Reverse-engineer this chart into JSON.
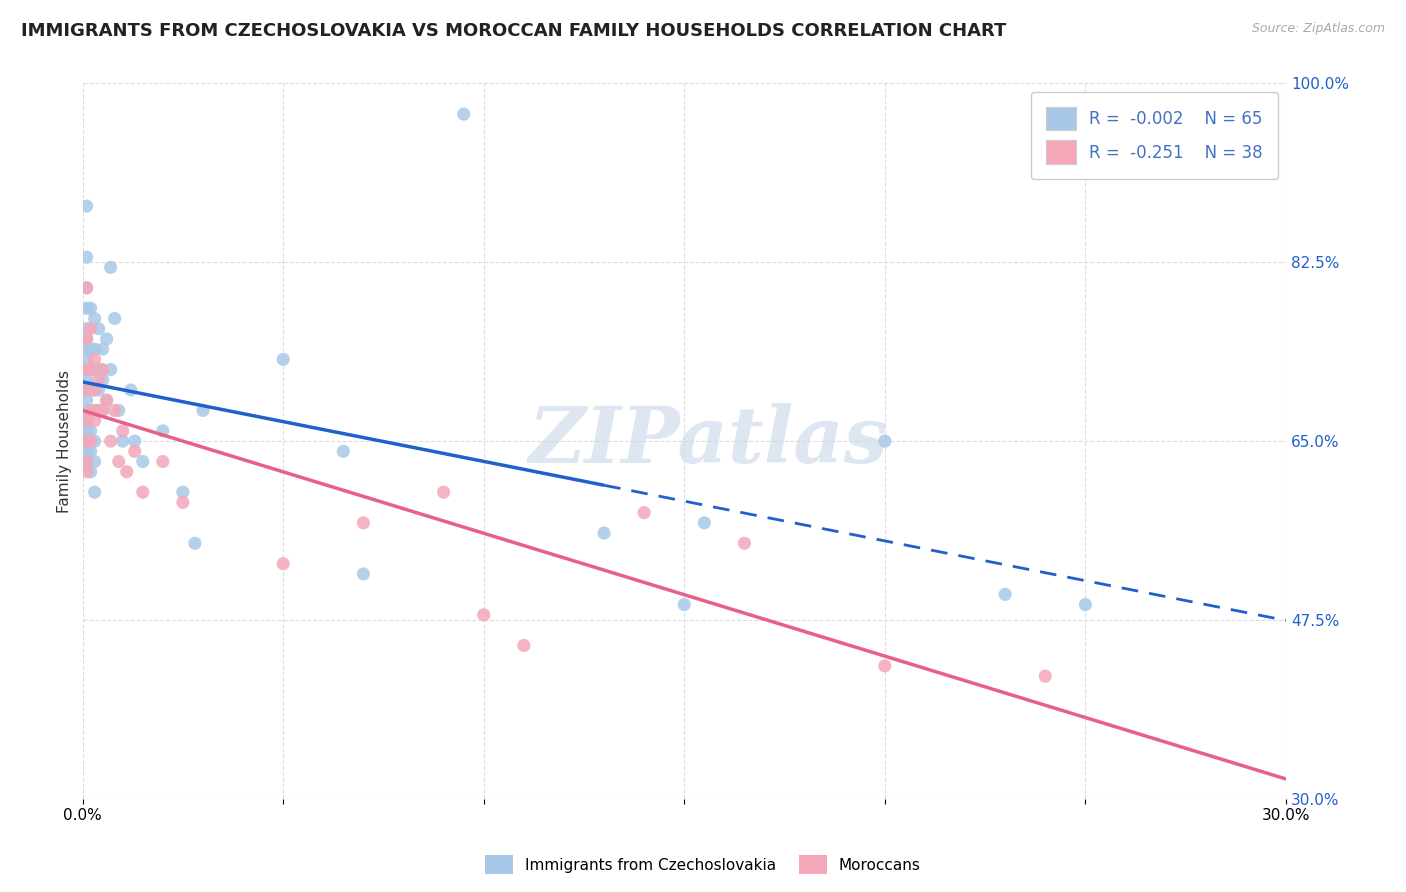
{
  "title": "IMMIGRANTS FROM CZECHOSLOVAKIA VS MOROCCAN FAMILY HOUSEHOLDS CORRELATION CHART",
  "source": "Source: ZipAtlas.com",
  "ylabel": "Family Households",
  "watermark": "ZIPatlas",
  "xmin": 0.0,
  "xmax": 0.3,
  "ymin": 0.3,
  "ymax": 1.0,
  "yticks": [
    0.3,
    0.475,
    0.65,
    0.825,
    1.0
  ],
  "ytick_labels": [
    "30.0%",
    "47.5%",
    "65.0%",
    "82.5%",
    "100.0%"
  ],
  "xticks": [
    0.0,
    0.05,
    0.1,
    0.15,
    0.2,
    0.25,
    0.3
  ],
  "legend_entries": [
    {
      "label": "Immigrants from Czechoslovakia",
      "color": "#a8c8e8",
      "R": "-0.002",
      "N": "65"
    },
    {
      "label": "Moroccans",
      "color": "#f4a7b9",
      "R": "-0.251",
      "N": "38"
    }
  ],
  "blue_color": "#a8c8e8",
  "pink_color": "#f4a7b9",
  "blue_line_color": "#2060cc",
  "pink_line_color": "#e8608a",
  "blue_line_solid_end": 0.13,
  "dot_size": 90,
  "blue_scatter": [
    [
      0.001,
      0.88
    ],
    [
      0.001,
      0.83
    ],
    [
      0.001,
      0.8
    ],
    [
      0.001,
      0.78
    ],
    [
      0.001,
      0.76
    ],
    [
      0.001,
      0.75
    ],
    [
      0.001,
      0.74
    ],
    [
      0.001,
      0.73
    ],
    [
      0.001,
      0.72
    ],
    [
      0.001,
      0.71
    ],
    [
      0.001,
      0.7
    ],
    [
      0.001,
      0.69
    ],
    [
      0.001,
      0.68
    ],
    [
      0.001,
      0.67
    ],
    [
      0.001,
      0.66
    ],
    [
      0.001,
      0.65
    ],
    [
      0.001,
      0.64
    ],
    [
      0.001,
      0.63
    ],
    [
      0.002,
      0.78
    ],
    [
      0.002,
      0.74
    ],
    [
      0.002,
      0.72
    ],
    [
      0.002,
      0.7
    ],
    [
      0.002,
      0.68
    ],
    [
      0.002,
      0.66
    ],
    [
      0.002,
      0.64
    ],
    [
      0.002,
      0.62
    ],
    [
      0.003,
      0.77
    ],
    [
      0.003,
      0.74
    ],
    [
      0.003,
      0.72
    ],
    [
      0.003,
      0.7
    ],
    [
      0.003,
      0.68
    ],
    [
      0.003,
      0.65
    ],
    [
      0.003,
      0.63
    ],
    [
      0.003,
      0.6
    ],
    [
      0.004,
      0.76
    ],
    [
      0.004,
      0.72
    ],
    [
      0.004,
      0.7
    ],
    [
      0.004,
      0.68
    ],
    [
      0.005,
      0.74
    ],
    [
      0.005,
      0.71
    ],
    [
      0.005,
      0.68
    ],
    [
      0.006,
      0.75
    ],
    [
      0.006,
      0.69
    ],
    [
      0.007,
      0.82
    ],
    [
      0.007,
      0.72
    ],
    [
      0.008,
      0.77
    ],
    [
      0.009,
      0.68
    ],
    [
      0.01,
      0.65
    ],
    [
      0.012,
      0.7
    ],
    [
      0.013,
      0.65
    ],
    [
      0.015,
      0.63
    ],
    [
      0.02,
      0.66
    ],
    [
      0.025,
      0.6
    ],
    [
      0.028,
      0.55
    ],
    [
      0.03,
      0.68
    ],
    [
      0.05,
      0.73
    ],
    [
      0.065,
      0.64
    ],
    [
      0.07,
      0.52
    ],
    [
      0.095,
      0.97
    ],
    [
      0.13,
      0.56
    ],
    [
      0.15,
      0.49
    ],
    [
      0.155,
      0.57
    ],
    [
      0.2,
      0.65
    ],
    [
      0.23,
      0.5
    ],
    [
      0.25,
      0.49
    ]
  ],
  "pink_scatter": [
    [
      0.001,
      0.8
    ],
    [
      0.001,
      0.75
    ],
    [
      0.001,
      0.72
    ],
    [
      0.001,
      0.7
    ],
    [
      0.001,
      0.67
    ],
    [
      0.001,
      0.65
    ],
    [
      0.001,
      0.63
    ],
    [
      0.001,
      0.62
    ],
    [
      0.002,
      0.76
    ],
    [
      0.002,
      0.72
    ],
    [
      0.002,
      0.68
    ],
    [
      0.002,
      0.65
    ],
    [
      0.003,
      0.73
    ],
    [
      0.003,
      0.7
    ],
    [
      0.003,
      0.67
    ],
    [
      0.004,
      0.71
    ],
    [
      0.004,
      0.68
    ],
    [
      0.005,
      0.72
    ],
    [
      0.005,
      0.68
    ],
    [
      0.006,
      0.69
    ],
    [
      0.007,
      0.65
    ],
    [
      0.008,
      0.68
    ],
    [
      0.009,
      0.63
    ],
    [
      0.01,
      0.66
    ],
    [
      0.011,
      0.62
    ],
    [
      0.013,
      0.64
    ],
    [
      0.015,
      0.6
    ],
    [
      0.02,
      0.63
    ],
    [
      0.025,
      0.59
    ],
    [
      0.05,
      0.53
    ],
    [
      0.07,
      0.57
    ],
    [
      0.09,
      0.6
    ],
    [
      0.1,
      0.48
    ],
    [
      0.11,
      0.45
    ],
    [
      0.14,
      0.58
    ],
    [
      0.165,
      0.55
    ],
    [
      0.2,
      0.43
    ],
    [
      0.24,
      0.42
    ]
  ],
  "grid_color": "#dddddd",
  "background_color": "#ffffff",
  "title_fontsize": 13,
  "axis_label_fontsize": 11,
  "tick_fontsize": 11,
  "legend_fontsize": 12
}
